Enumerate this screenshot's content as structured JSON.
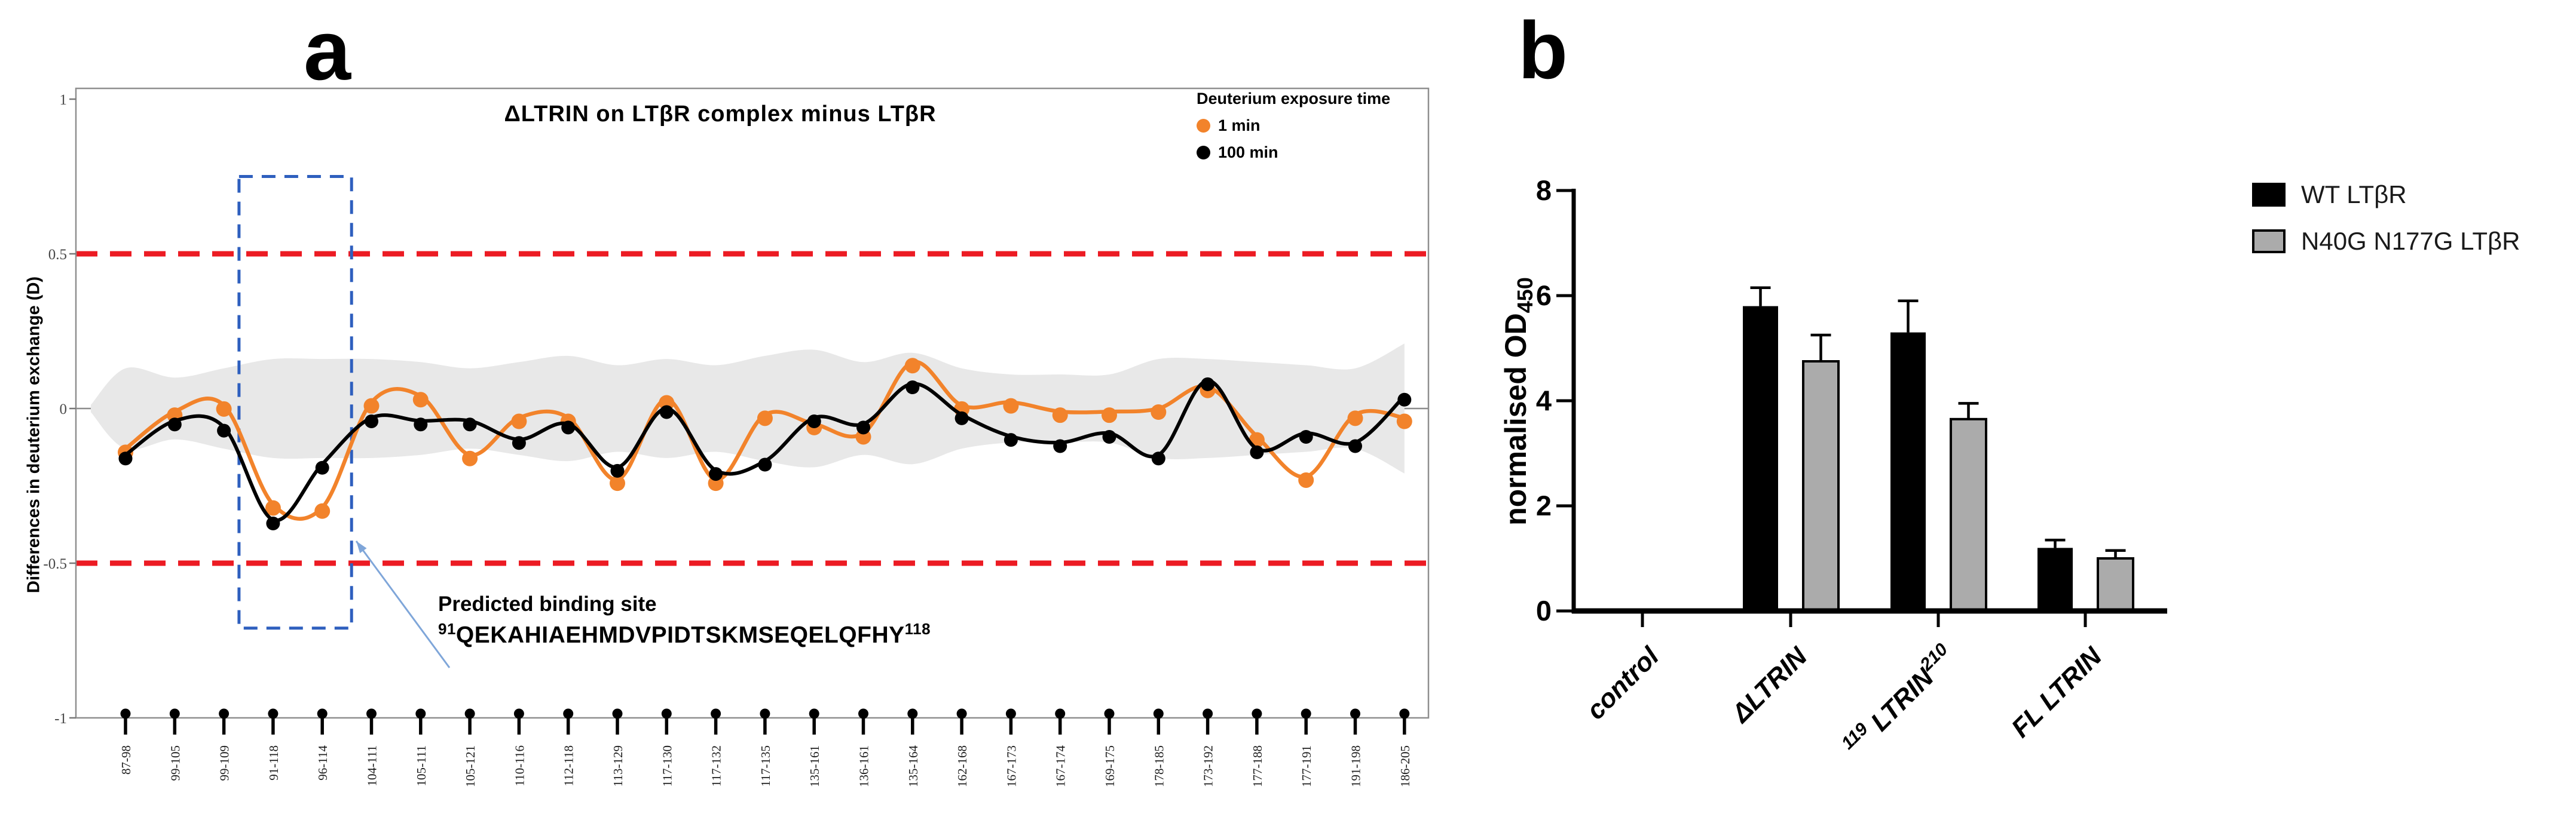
{
  "figure": {
    "panel_a_label": "a",
    "panel_b_label": "b"
  },
  "chart_data": [
    {
      "id": "hdx-difference-plot",
      "type": "line",
      "title": "ΔLTRIN on LTβR complex minus LTβR",
      "ylabel": "Differences in deuterium exchange (D)",
      "ylim": [
        -1,
        1
      ],
      "yticks": [
        "1",
        "0.5",
        "0",
        "-0.5",
        "-1"
      ],
      "ytick_values": [
        1,
        0.5,
        0,
        -0.5,
        -1
      ],
      "grid": false,
      "legend_title": "Deuterium exposure time",
      "legend_position": "top-right",
      "categories": [
        "87-98",
        "99-105",
        "99-109",
        "91-118",
        "96-114",
        "104-111",
        "105-111",
        "105-121",
        "110-116",
        "112-118",
        "113-129",
        "117-130",
        "117-132",
        "117-135",
        "135-161",
        "136-161",
        "135-164",
        "162-168",
        "167-173",
        "167-174",
        "169-175",
        "178-185",
        "173-192",
        "177-188",
        "177-191",
        "191-198",
        "186-205"
      ],
      "series": [
        {
          "name": "1 min",
          "color": "#F2832B",
          "values": [
            -0.13,
            -0.01,
            0.01,
            -0.31,
            -0.32,
            0.02,
            0.04,
            -0.15,
            -0.03,
            -0.03,
            -0.23,
            0.03,
            -0.23,
            -0.02,
            -0.05,
            -0.08,
            0.15,
            0.01,
            0.02,
            -0.01,
            -0.01,
            0.0,
            0.07,
            -0.09,
            -0.22,
            -0.02,
            -0.03
          ]
        },
        {
          "name": "100 min",
          "color": "#000000",
          "values": [
            -0.15,
            -0.04,
            -0.06,
            -0.36,
            -0.18,
            -0.03,
            -0.04,
            -0.04,
            -0.1,
            -0.05,
            -0.19,
            0.0,
            -0.2,
            -0.17,
            -0.03,
            -0.05,
            0.08,
            -0.02,
            -0.09,
            -0.11,
            -0.08,
            -0.15,
            0.09,
            -0.13,
            -0.08,
            -0.11,
            0.04
          ]
        }
      ],
      "significance_threshold": {
        "values": [
          0.5,
          -0.5
        ],
        "color": "#EC1B23",
        "style": "dashed"
      },
      "confidence_band": {
        "color": "#E8E8E8",
        "half_widths": [
          0.13,
          0.1,
          0.13,
          0.16,
          0.16,
          0.16,
          0.15,
          0.13,
          0.15,
          0.17,
          0.14,
          0.16,
          0.14,
          0.17,
          0.19,
          0.15,
          0.18,
          0.13,
          0.11,
          0.11,
          0.11,
          0.16,
          0.16,
          0.15,
          0.14,
          0.13,
          0.21
        ]
      },
      "highlight_box": {
        "color": "#2E5FBE",
        "x_from_category": "91-118",
        "x_to_category": "96-114",
        "y_from": -0.71,
        "y_to": 0.75
      },
      "annotation": {
        "title": "Predicted binding site",
        "sequence_start_sup": "91",
        "sequence": "QEKAHIAEHMDVPIDTSKMSEQELQFHY",
        "sequence_end_sup": "118",
        "arrow_color": "#7FA6D9"
      }
    },
    {
      "id": "elisa-binding-assay",
      "type": "bar",
      "ylabel": "normalised OD",
      "ylabel_sub": "450",
      "ylim": [
        0,
        8
      ],
      "yticks": [
        "0",
        "2",
        "4",
        "6",
        "8"
      ],
      "ytick_values": [
        0,
        2,
        4,
        6,
        8
      ],
      "categories": [
        {
          "label": "control"
        },
        {
          "label": "ΔLTRIN"
        },
        {
          "pre_sup": "119",
          "label": " LTRIN",
          "post_sup": "210"
        },
        {
          "label": "FL LTRIN"
        }
      ],
      "series": [
        {
          "name": "WT LTβR",
          "color": "#000000",
          "values": [
            0,
            5.8,
            5.3,
            1.2
          ],
          "errors": [
            0,
            0.35,
            0.6,
            0.15
          ]
        },
        {
          "name": "N40G N177G LTβR",
          "color": "#ABABAB",
          "values": [
            0,
            4.75,
            3.65,
            1.0
          ],
          "errors": [
            0,
            0.5,
            0.3,
            0.15
          ]
        }
      ],
      "legend_position": "right"
    }
  ]
}
